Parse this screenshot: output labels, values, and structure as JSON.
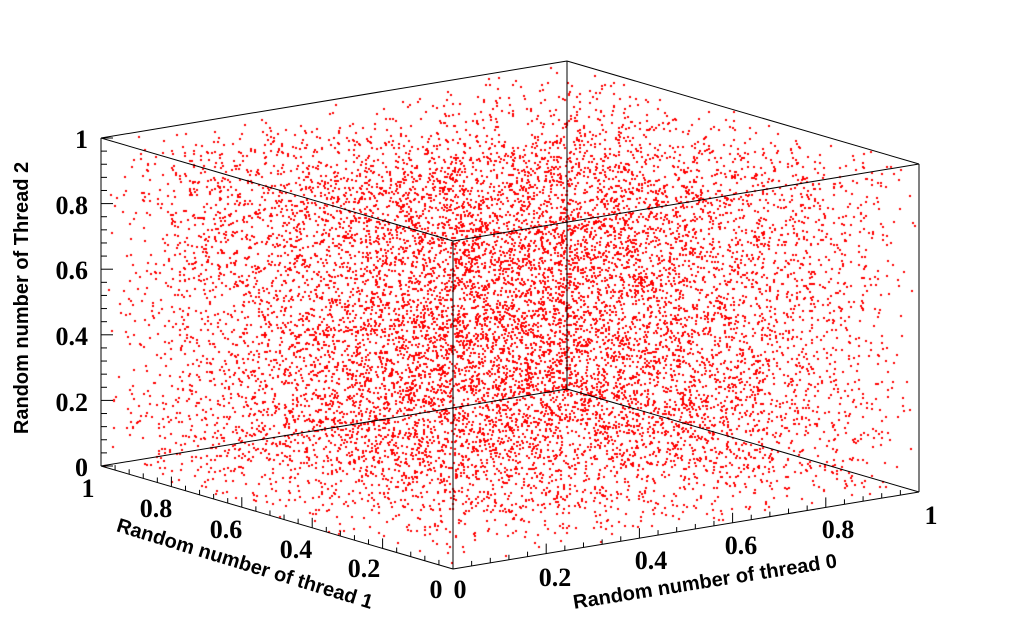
{
  "chart_data": {
    "type": "scatter",
    "marker_color": "#ff0000",
    "point_count": 60000,
    "distribution": "uniform",
    "axes": {
      "x": {
        "label": "Random number of thread 0",
        "range": [
          0,
          1
        ],
        "ticks": [
          "0",
          "0.2",
          "0.4",
          "0.6",
          "0.8",
          "1"
        ]
      },
      "y": {
        "label": "Random number of thread 1",
        "range": [
          0,
          1
        ],
        "ticks": [
          "0",
          "0.2",
          "0.4",
          "0.6",
          "0.8",
          "1"
        ]
      },
      "z": {
        "label": "Random number of Thread 2",
        "range": [
          0,
          1
        ],
        "ticks": [
          "0",
          "0.2",
          "0.4",
          "0.6",
          "0.8",
          "1"
        ]
      }
    },
    "box": true,
    "grid": false
  }
}
